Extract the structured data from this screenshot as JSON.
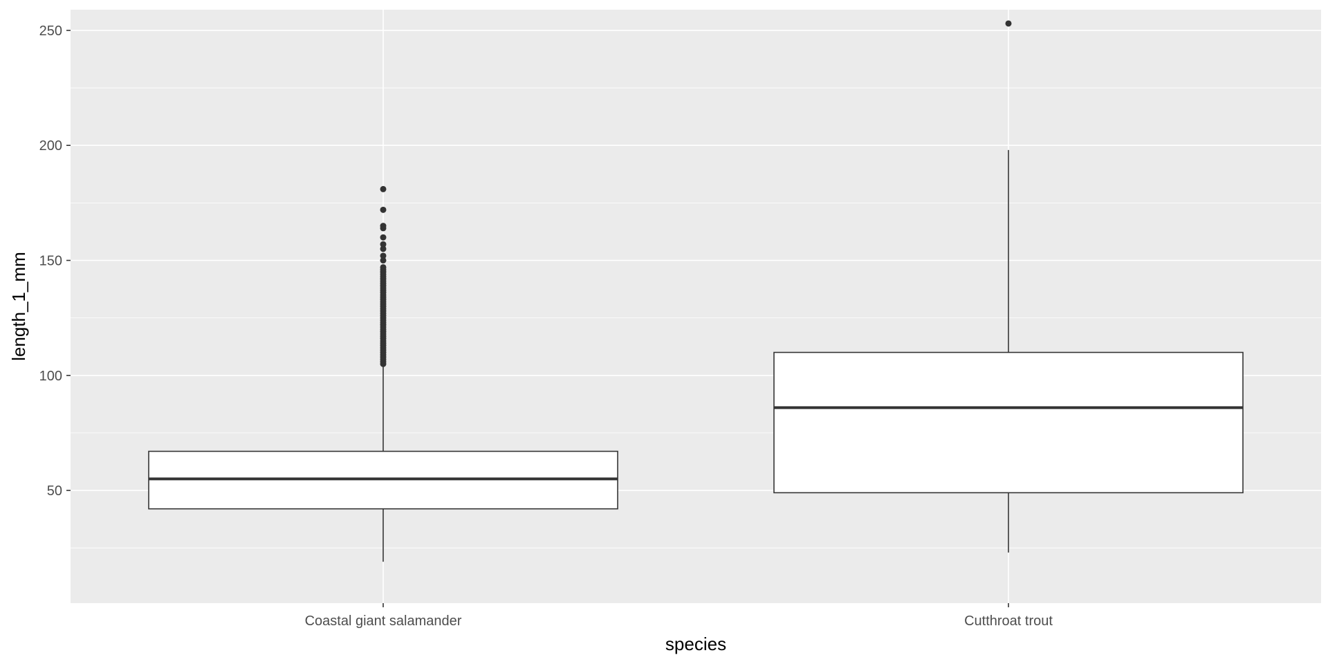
{
  "chart_data": {
    "type": "boxplot",
    "title": "",
    "xlabel": "species",
    "ylabel": "length_1_mm",
    "ylim": [
      1,
      259
    ],
    "y_ticks": [
      50,
      100,
      150,
      200,
      250
    ],
    "y_minor_ticks": [
      25,
      75,
      125,
      175,
      225
    ],
    "grid": true,
    "categories": [
      "Coastal giant salamander",
      "Cutthroat trout"
    ],
    "boxes": [
      {
        "category": "Coastal giant salamander",
        "whisker_low": 19,
        "q1": 42,
        "median": 55,
        "q3": 67,
        "whisker_high": 104,
        "outliers": [
          105,
          106,
          107,
          108,
          109,
          110,
          111,
          112,
          113,
          114,
          115,
          116,
          117,
          118,
          119,
          120,
          121,
          122,
          123,
          124,
          125,
          126,
          127,
          128,
          129,
          130,
          131,
          132,
          133,
          134,
          135,
          136,
          137,
          138,
          139,
          140,
          141,
          142,
          143,
          144,
          145,
          146,
          147,
          150,
          152,
          155,
          157,
          160,
          164,
          165,
          172,
          181
        ]
      },
      {
        "category": "Cutthroat trout",
        "whisker_low": 23,
        "q1": 49,
        "median": 86,
        "q3": 110,
        "whisker_high": 198,
        "outliers": [
          253
        ]
      }
    ],
    "colors": {
      "panel_background": "#ebebeb",
      "grid_major": "#ffffff",
      "box_fill": "#ffffff",
      "box_line": "#333333",
      "outlier": "#333333",
      "tick_label": "#4d4d4d"
    }
  }
}
